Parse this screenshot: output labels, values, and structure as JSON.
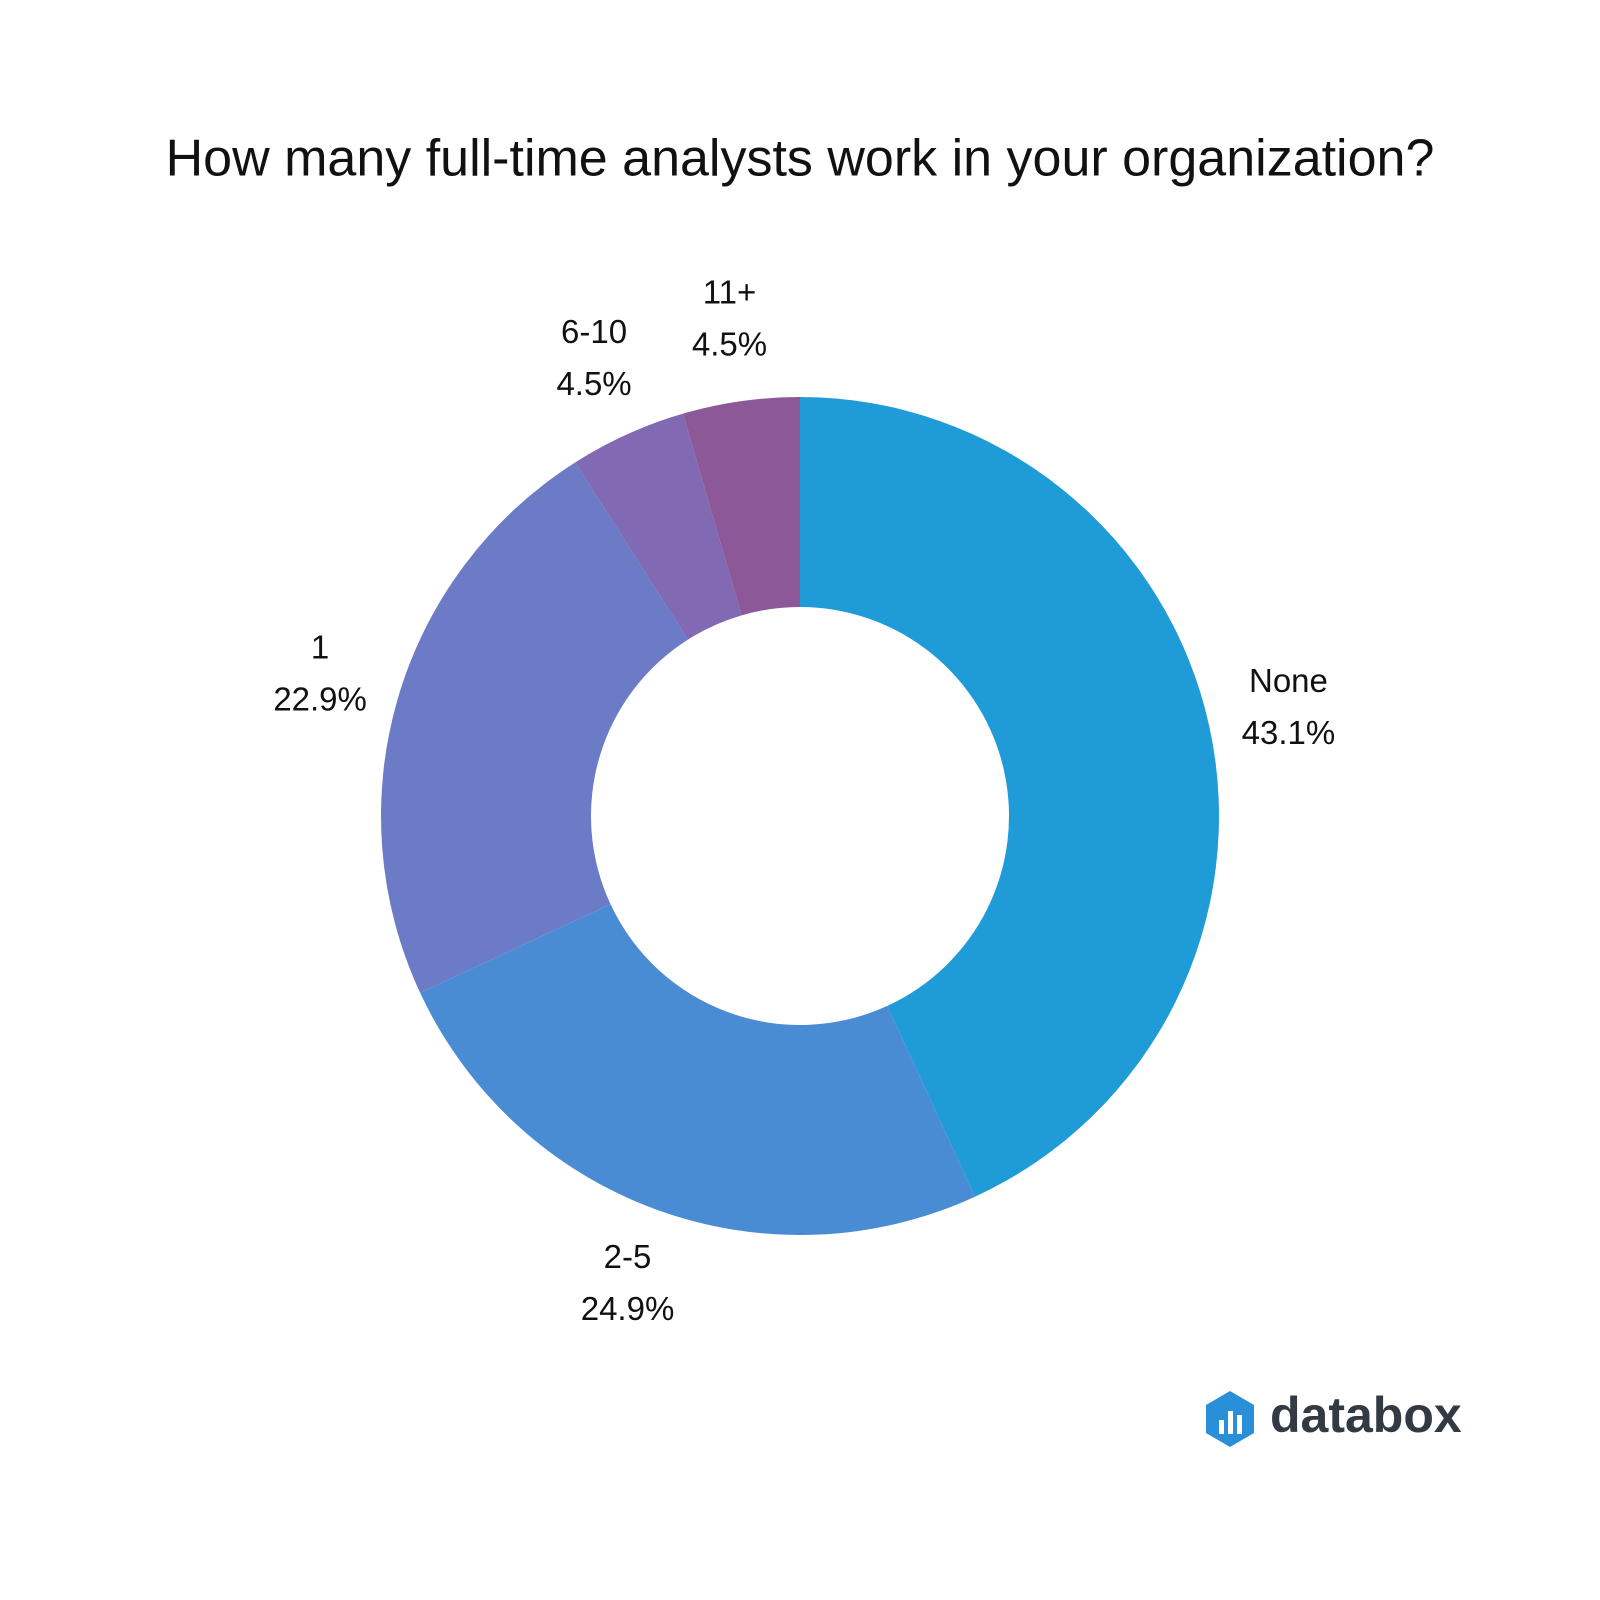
{
  "chart_data": {
    "type": "donut",
    "title": "How many full-time analysts work in your organization?",
    "categories": [
      "None",
      "2-5",
      "1",
      "6-10",
      "11+"
    ],
    "values": [
      43.1,
      24.9,
      22.9,
      4.5,
      4.5
    ],
    "value_labels": [
      "43.1%",
      "24.9%",
      "22.9%",
      "4.5%",
      "4.5%"
    ],
    "colors": [
      "#1f9bd7",
      "#4a8cd3",
      "#6b7bc6",
      "#8169b3",
      "#8c5897"
    ]
  },
  "brand": "databox"
}
